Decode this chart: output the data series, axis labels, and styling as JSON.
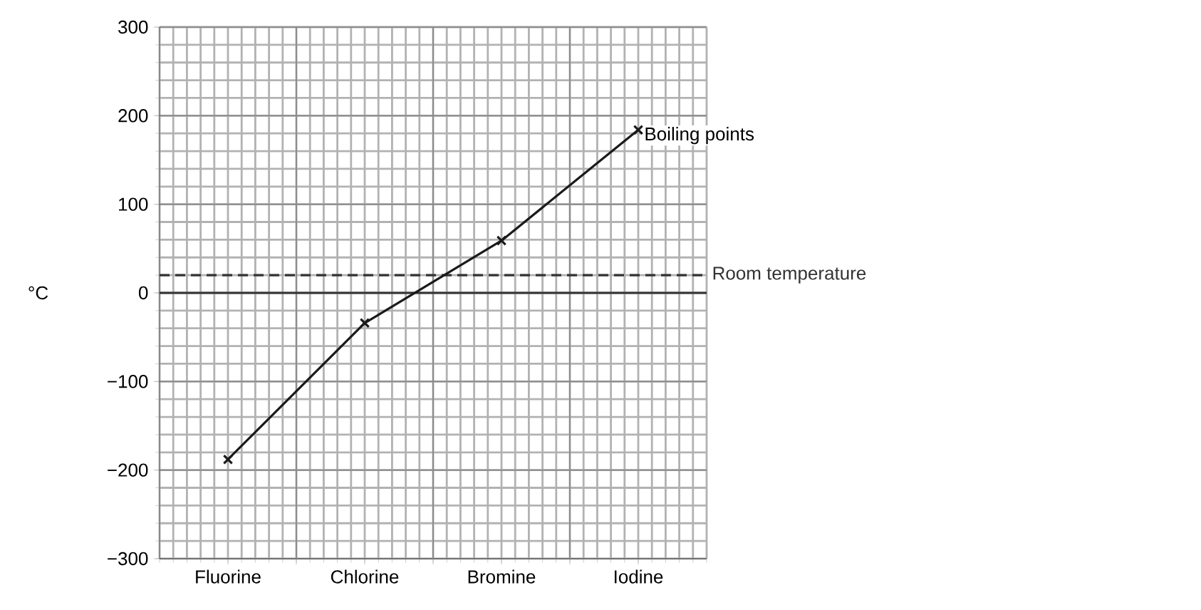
{
  "chart_data": {
    "type": "line",
    "ylabel": "°C",
    "categories": [
      "Fluorine",
      "Chlorine",
      "Bromine",
      "Iodine"
    ],
    "series": [
      {
        "name": "Boiling points",
        "color": "#1a1a1a",
        "values": [
          -188,
          -34,
          59,
          184
        ]
      }
    ],
    "ylim": [
      -300,
      300
    ],
    "yticks": [
      {
        "value": -300,
        "label": "−300"
      },
      {
        "value": -200,
        "label": "−200"
      },
      {
        "value": -100,
        "label": "−100"
      },
      0,
      100,
      200,
      300
    ],
    "grid": true,
    "marker": "cross",
    "line_style": "solid",
    "ref_lines": [
      {
        "axis": "y",
        "value": 0,
        "color": "#333333",
        "line_style": "solid"
      },
      {
        "axis": "y",
        "value": 20,
        "label": "Room temperature",
        "color": "#333333",
        "line_style": "dashed"
      }
    ]
  }
}
